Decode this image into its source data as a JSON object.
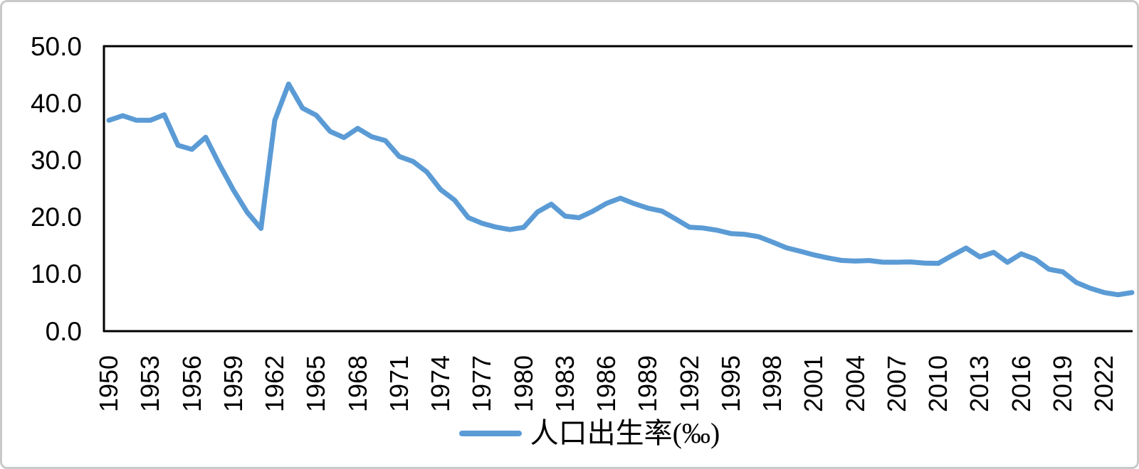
{
  "colors": {
    "line": "#5B9BD5",
    "axis": "#000000",
    "frame_border": "#c9c9c9",
    "background": "#ffffff"
  },
  "legend": {
    "label": "人口出生率(‰)"
  },
  "y_axis": {
    "tick_labels": [
      "50.0",
      "40.0",
      "30.0",
      "20.0",
      "10.0",
      "0.0"
    ],
    "min": 0,
    "max": 50
  },
  "x_axis": {
    "tick_labels": [
      "1950",
      "1953",
      "1956",
      "1959",
      "1962",
      "1965",
      "1968",
      "1971",
      "1974",
      "1977",
      "1980",
      "1983",
      "1986",
      "1989",
      "1992",
      "1995",
      "1998",
      "2001",
      "2004",
      "2007",
      "2010",
      "2013",
      "2016",
      "2019",
      "2022"
    ]
  },
  "chart_data": {
    "type": "line",
    "title": "",
    "xlabel": "",
    "ylabel": "",
    "ylim": [
      0,
      50
    ],
    "grid": false,
    "legend_position": "bottom",
    "x": [
      1950,
      1951,
      1952,
      1953,
      1954,
      1955,
      1956,
      1957,
      1958,
      1959,
      1960,
      1961,
      1962,
      1963,
      1964,
      1965,
      1966,
      1967,
      1968,
      1969,
      1970,
      1971,
      1972,
      1973,
      1974,
      1975,
      1976,
      1977,
      1978,
      1979,
      1980,
      1981,
      1982,
      1983,
      1984,
      1985,
      1986,
      1987,
      1988,
      1989,
      1990,
      1991,
      1992,
      1993,
      1994,
      1995,
      1996,
      1997,
      1998,
      1999,
      2000,
      2001,
      2002,
      2003,
      2004,
      2005,
      2006,
      2007,
      2008,
      2009,
      2010,
      2011,
      2012,
      2013,
      2014,
      2015,
      2016,
      2017,
      2018,
      2019,
      2020,
      2021,
      2022,
      2023,
      2024
    ],
    "series": [
      {
        "name": "人口出生率(‰)",
        "values": [
          37.0,
          37.8,
          37.0,
          37.0,
          37.97,
          32.6,
          31.9,
          34.03,
          29.22,
          24.78,
          20.86,
          18.02,
          37.01,
          43.37,
          39.14,
          37.88,
          35.05,
          33.96,
          35.59,
          34.11,
          33.43,
          30.65,
          29.77,
          27.93,
          24.82,
          23.01,
          19.91,
          18.93,
          18.25,
          17.82,
          18.21,
          20.91,
          22.28,
          20.19,
          19.9,
          21.04,
          22.43,
          23.33,
          22.37,
          21.58,
          21.06,
          19.68,
          18.24,
          18.09,
          17.7,
          17.12,
          16.98,
          16.57,
          15.64,
          14.64,
          14.03,
          13.38,
          12.86,
          12.41,
          12.29,
          12.4,
          12.09,
          12.1,
          12.14,
          11.95,
          11.9,
          13.27,
          14.57,
          13.03,
          13.83,
          12.07,
          13.57,
          12.64,
          10.86,
          10.41,
          8.52,
          7.52,
          6.77,
          6.39,
          6.77
        ]
      }
    ]
  }
}
